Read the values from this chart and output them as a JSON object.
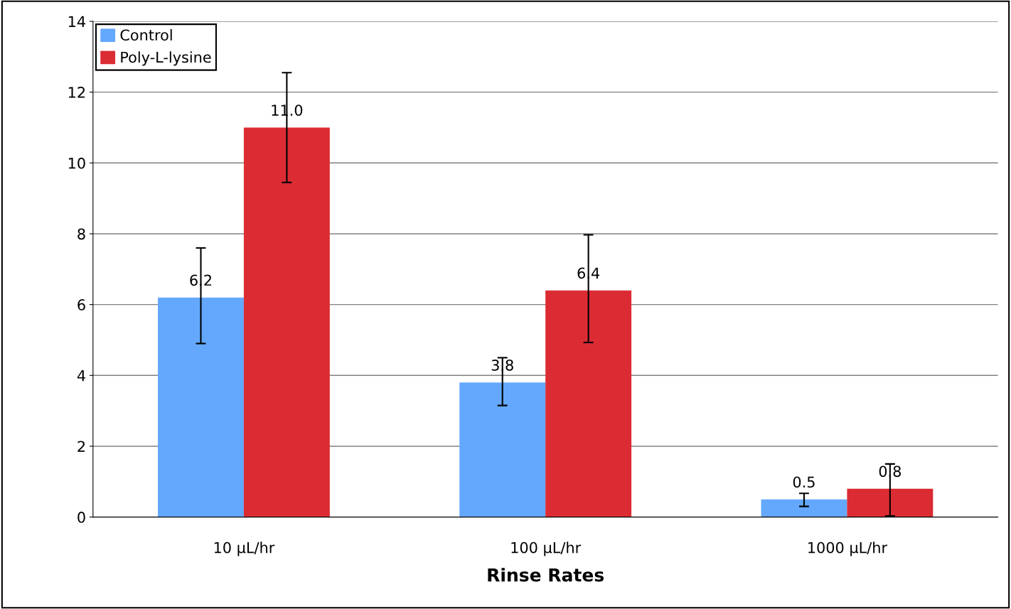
{
  "chart_data": {
    "type": "bar",
    "xlabel": "Rinse Rates",
    "categories": [
      "10 μL/hr",
      "100 μL/hr",
      "1000 μL/hr"
    ],
    "series": [
      {
        "name": "Control",
        "color": "#63a8fd",
        "values": [
          6.2,
          3.8,
          0.5
        ],
        "value_labels": [
          "6.2",
          "3.8",
          "0.5"
        ],
        "errors": [
          [
            4.9,
            7.6
          ],
          [
            3.15,
            4.5
          ],
          [
            0.3,
            0.67
          ]
        ]
      },
      {
        "name": "Poly-L-lysine",
        "color": "#dc2c33",
        "values": [
          11.0,
          6.4,
          0.8
        ],
        "value_labels": [
          "11.0",
          "6.4",
          "0.8"
        ],
        "errors": [
          [
            9.45,
            12.55
          ],
          [
            4.93,
            7.97
          ],
          [
            0.03,
            1.5
          ]
        ]
      }
    ],
    "ylim": [
      0,
      14
    ],
    "yticks": [
      0,
      2,
      4,
      6,
      8,
      10,
      12,
      14
    ],
    "grid": "y",
    "legend": "top left"
  }
}
